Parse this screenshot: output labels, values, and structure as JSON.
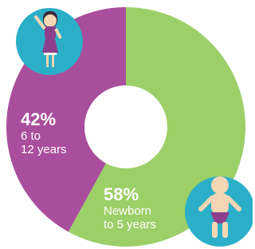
{
  "chart_data": {
    "type": "donut",
    "categories": [
      "Newborn\nto 5 years",
      "6 to\n12 years"
    ],
    "values": [
      58,
      42
    ],
    "value_labels": [
      "58%",
      "42%"
    ],
    "colors": [
      "#9ccf68",
      "#a94e9c"
    ]
  }
}
